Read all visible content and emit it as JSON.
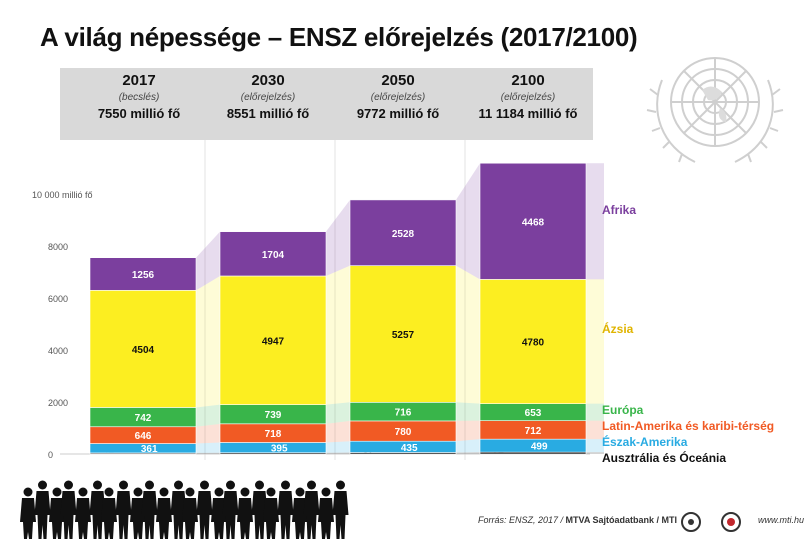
{
  "title": "A világ népessége – ENSZ előrejelzés (2017/2100)",
  "columns": [
    {
      "year": "2017",
      "note": "(becslés)",
      "total": "7550 millió fő"
    },
    {
      "year": "2030",
      "note": "(előrejelzés)",
      "total": "8551 millió fő"
    },
    {
      "year": "2050",
      "note": "(előrejelzés)",
      "total": "9772 millió fő"
    },
    {
      "year": "2100",
      "note": "(előrejelzés)",
      "total": "11 1184 millió fő"
    }
  ],
  "footer": {
    "source_prefix": "Forrás: ENSZ, 2017 / ",
    "source_bold": "MTVA Sajtóadatbank / MTI",
    "site": "www.mti.hu"
  },
  "chart_data": {
    "type": "bar",
    "stacked": true,
    "categories": [
      "2017",
      "2030",
      "2050",
      "2100"
    ],
    "series": [
      {
        "name": "Ausztrália és Óceánia",
        "values": [
          41,
          48,
          57,
          72
        ],
        "color": "#111111",
        "label_color": "#111111"
      },
      {
        "name": "Észak-Amerika",
        "values": [
          361,
          395,
          435,
          499
        ],
        "color": "#29abe2",
        "label_color": "#29abe2"
      },
      {
        "name": "Latin-Amerika és karibi-térség",
        "values": [
          646,
          718,
          780,
          712
        ],
        "color": "#f15a24",
        "label_color": "#f15a24"
      },
      {
        "name": "Európa",
        "values": [
          742,
          739,
          716,
          653
        ],
        "color": "#39b54a",
        "label_color": "#39b54a"
      },
      {
        "name": "Ázsia",
        "values": [
          4504,
          4947,
          5257,
          4780
        ],
        "color": "#fcee21",
        "label_color": "#e0b400"
      },
      {
        "name": "Afrika",
        "values": [
          1256,
          1704,
          2528,
          4468
        ],
        "color": "#7b3f9e",
        "label_color": "#7b3f9e"
      }
    ],
    "yticks": [
      "0",
      "2000",
      "4000",
      "6000",
      "8000",
      "10 000 millió fő"
    ],
    "ytick_values": [
      0,
      2000,
      4000,
      6000,
      8000,
      10000
    ],
    "ylim": [
      0,
      11200
    ],
    "grid": false,
    "legend": "right"
  }
}
